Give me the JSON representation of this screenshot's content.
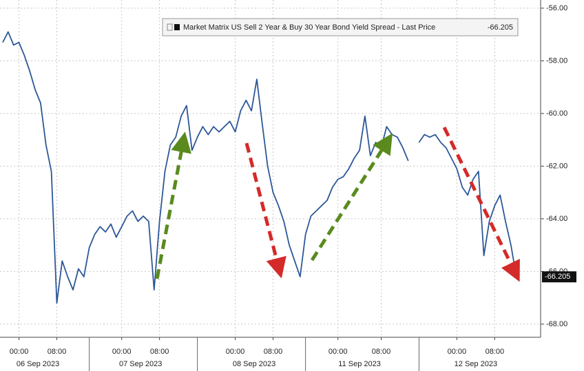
{
  "chart_data": {
    "type": "line",
    "categories": [
      null,
      null,
      null,
      "00:00",
      null,
      null,
      null,
      null,
      null,
      null,
      "08:00",
      null,
      null,
      null,
      null,
      null,
      null,
      null,
      null,
      null,
      null,
      null,
      "00:00",
      null,
      null,
      null,
      null,
      null,
      null,
      "08:00",
      null,
      null,
      null,
      null,
      null,
      null,
      null,
      null,
      null,
      null,
      null,
      null,
      null,
      "00:00",
      null,
      null,
      null,
      null,
      null,
      null,
      "08:00",
      null,
      null,
      null,
      null,
      null,
      null,
      null,
      null,
      null,
      null,
      null,
      "00:00",
      null,
      null,
      null,
      null,
      null,
      null,
      null,
      "08:00",
      null,
      null,
      null,
      null,
      null,
      null,
      null,
      null,
      null,
      null,
      null,
      null,
      null,
      "00:00",
      null,
      null,
      null,
      null,
      null,
      null,
      "08:00",
      null,
      null,
      null,
      null
    ],
    "x_dates": [
      "06 Sep 2023",
      "07 Sep 2023",
      "08 Sep 2023",
      "11 Sep 2023",
      "12 Sep 2023"
    ],
    "series": [
      {
        "name": "Market Matrix US Sell 2 Year & Buy 30 Year Bond Yield Spread - Last Price",
        "color": "#2b5797",
        "values": [
          -57.3,
          -56.9,
          -57.4,
          -57.3,
          -57.8,
          -58.4,
          -59.1,
          -59.6,
          -61.2,
          -62.2,
          -67.2,
          -65.6,
          -66.2,
          -66.7,
          -65.9,
          -66.2,
          -65.1,
          -64.6,
          -64.3,
          -64.5,
          -64.2,
          -64.7,
          -64.3,
          -63.9,
          -63.7,
          -64.1,
          -63.9,
          -64.1,
          -66.7,
          -64.1,
          -62.2,
          -61.2,
          -60.9,
          -60.1,
          -59.7,
          -61.4,
          -60.9,
          -60.5,
          -60.8,
          -60.5,
          -60.7,
          -60.5,
          -60.3,
          -60.7,
          -59.9,
          -59.5,
          -59.9,
          -58.7,
          -60.4,
          -62.0,
          -63.0,
          -63.5,
          -64.1,
          -65.0,
          -65.6,
          -66.2,
          -64.6,
          -63.9,
          -63.7,
          -63.5,
          -63.3,
          -62.8,
          -62.5,
          -62.4,
          -62.1,
          -61.7,
          -61.4,
          -60.1,
          -61.6,
          -61.1,
          -61.3,
          -60.5,
          -60.8,
          -60.9,
          -61.3,
          -61.8,
          null,
          -61.1,
          -60.8,
          -60.9,
          -60.8,
          -61.1,
          -61.3,
          -61.7,
          -62.1,
          -62.8,
          -63.1,
          -62.5,
          -62.2,
          -65.4,
          -64.1,
          -63.5,
          -63.1,
          -64.1,
          -65.0,
          -66.205
        ]
      }
    ],
    "ylim": [
      -68.5,
      -55.69
    ],
    "yticks": [
      {
        "value": -56,
        "label": "-56.00"
      },
      {
        "value": -58,
        "label": "-58.00"
      },
      {
        "value": -60,
        "label": "-60.00"
      },
      {
        "value": -62,
        "label": "-62.00"
      },
      {
        "value": -64,
        "label": "-64.00"
      },
      {
        "value": -66,
        "label": "-66.00"
      },
      {
        "value": -68,
        "label": "-68.00"
      }
    ],
    "grid": true,
    "legend_position": "top"
  }
}
